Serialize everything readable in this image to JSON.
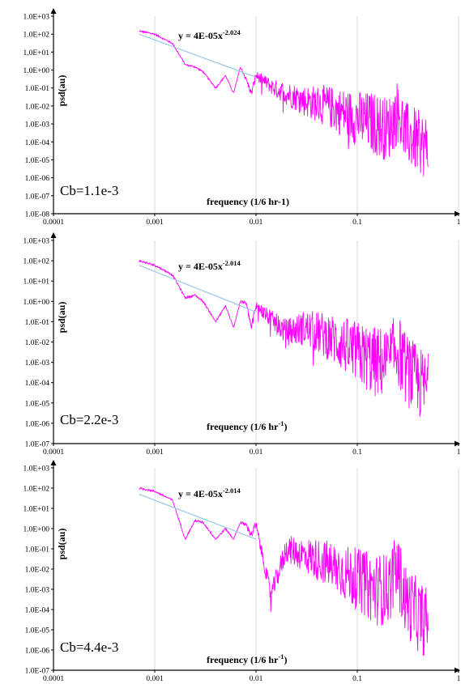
{
  "chart_data": [
    {
      "type": "line",
      "xscale": "log",
      "yscale": "log",
      "xlim": [
        0.0001,
        1
      ],
      "ylim": [
        1e-08,
        1000.0
      ],
      "x_ticks": [
        "0.0001",
        "0.001",
        "0.01",
        "0.1",
        "1"
      ],
      "y_ticks": [
        "1.0E-08",
        "1.0E-07",
        "1.0E-06",
        "1.0E-05",
        "1.0E-04",
        "1.0E-03",
        "1.0E-02",
        "1.0E-01",
        "1.0E+00",
        "1.0E+01",
        "1.0E+02",
        "1.0E+03"
      ],
      "xlabel": "frequency (1/6 hr-1)",
      "xlabel_main": "frequency (1/6 hr-1)",
      "xlabel_sup": "",
      "ylabel": "psd(au)",
      "annotation": "Cb=1.1e-3",
      "equation": "y = 4E-05x-2.024",
      "equation_main": "y = 4E-05x",
      "equation_sup": "-2.024",
      "grid": "vertical",
      "series": [
        {
          "color": "#ff00ff",
          "x": [
            0.0007,
            0.001,
            0.0015,
            0.002,
            0.0025,
            0.003,
            0.004,
            0.005,
            0.006,
            0.007,
            0.008,
            0.009,
            0.01,
            0.015,
            0.02,
            0.03,
            0.05,
            0.1,
            0.15,
            0.2,
            0.25,
            0.3,
            0.4,
            0.5
          ],
          "y": [
            150,
            100,
            30,
            2,
            1.5,
            0.8,
            0.1,
            0.5,
            0.05,
            1.5,
            0.3,
            0.05,
            0.5,
            0.1,
            0.05,
            0.02,
            0.01,
            0.002,
            0.001,
            0.0005,
            0.005,
            0.0003,
            0.0001,
            5e-05
          ]
        },
        {
          "color": "#a0c8e8",
          "x": [
            0.0007,
            0.01
          ],
          "y": [
            100,
            0.4
          ]
        }
      ]
    },
    {
      "type": "line",
      "xscale": "log",
      "yscale": "log",
      "xlim": [
        0.0001,
        1
      ],
      "ylim": [
        1e-07,
        1000.0
      ],
      "x_ticks": [
        "0.0001",
        "0.001",
        "0.01",
        "0.1",
        "1"
      ],
      "y_ticks": [
        "1.0E-07",
        "1.0E-06",
        "1.0E-05",
        "1.0E-04",
        "1.0E-03",
        "1.0E-02",
        "1.0E-01",
        "1.0E+00",
        "1.0E+01",
        "1.0E+02",
        "1.0E+03"
      ],
      "xlabel": "frequency (1/6 hr-1)",
      "xlabel_main": "frequency (1/6 hr",
      "xlabel_sup": "-1",
      "xlabel_tail": ")",
      "ylabel": "psd(au)",
      "annotation": "Cb=2.2e-3",
      "equation": "y = 4E-05x-2.014",
      "equation_main": "y = 4E-05x",
      "equation_sup": "-2.014",
      "grid": "vertical",
      "series": [
        {
          "color": "#ff00ff",
          "x": [
            0.0007,
            0.001,
            0.0015,
            0.002,
            0.0025,
            0.003,
            0.004,
            0.005,
            0.006,
            0.007,
            0.008,
            0.009,
            0.01,
            0.015,
            0.02,
            0.03,
            0.05,
            0.1,
            0.15,
            0.2,
            0.25,
            0.3,
            0.4,
            0.5
          ],
          "y": [
            100,
            60,
            20,
            1.5,
            2,
            1,
            0.1,
            0.6,
            0.05,
            1,
            0.8,
            0.05,
            0.6,
            0.1,
            0.03,
            0.05,
            0.02,
            0.003,
            0.001,
            0.001,
            0.005,
            0.0005,
            0.0001,
            5e-05
          ]
        },
        {
          "color": "#a0c8e8",
          "x": [
            0.0007,
            0.01
          ],
          "y": [
            60,
            0.3
          ]
        }
      ]
    },
    {
      "type": "line",
      "xscale": "log",
      "yscale": "log",
      "xlim": [
        0.0001,
        1
      ],
      "ylim": [
        1e-07,
        1000.0
      ],
      "x_ticks": [
        "0.0001",
        "0.001",
        "0.01",
        "0.1",
        "1"
      ],
      "y_ticks": [
        "1.0E-07",
        "1.0E-06",
        "1.0E-05",
        "1.0E-04",
        "1.0E-03",
        "1.0E-02",
        "1.0E-01",
        "1.0E+00",
        "1.0E+01",
        "1.0E+02",
        "1.0E+03"
      ],
      "xlabel": "frequency (1/6 hr-1)",
      "xlabel_main": "frequency (1/6 hr",
      "xlabel_sup": "-1",
      "xlabel_tail": ")",
      "ylabel": "psd(au)",
      "annotation": "Cb=4.4e-3",
      "equation": "y = 4E-05x-2.014",
      "equation_main": "y = 4E-05x",
      "equation_sup": "-2.014",
      "grid": "vertical",
      "series": [
        {
          "color": "#ff00ff",
          "x": [
            0.0007,
            0.001,
            0.0015,
            0.002,
            0.0025,
            0.003,
            0.004,
            0.005,
            0.006,
            0.007,
            0.008,
            0.009,
            0.01,
            0.014,
            0.02,
            0.03,
            0.05,
            0.1,
            0.15,
            0.2,
            0.25,
            0.3,
            0.4,
            0.5
          ],
          "y": [
            100,
            70,
            25,
            0.3,
            2.5,
            2,
            0.3,
            1,
            0.3,
            2,
            1.5,
            0.5,
            1.5,
            0.0005,
            0.1,
            0.05,
            0.02,
            0.003,
            0.001,
            0.001,
            0.01,
            0.0003,
            5e-05,
            2e-05
          ]
        },
        {
          "color": "#a0c8e8",
          "x": [
            0.0007,
            0.01
          ],
          "y": [
            50,
            0.3
          ]
        }
      ]
    }
  ]
}
